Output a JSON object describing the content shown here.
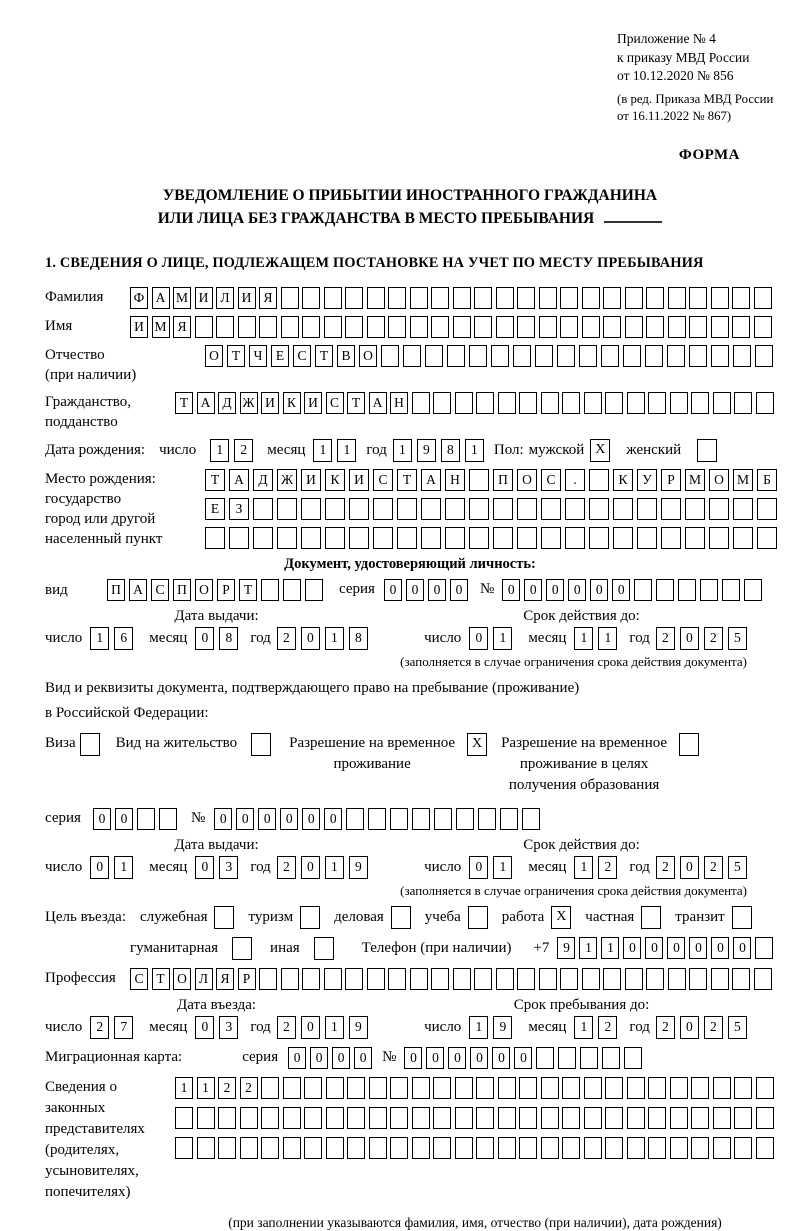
{
  "colors": {
    "ink": "#000000",
    "paper": "#ffffff"
  },
  "header": {
    "appendix_line1": "Приложение № 4",
    "appendix_line2": "к приказу МВД России",
    "appendix_line3": "от 10.12.2020 № 856",
    "edition_line1": "(в ред. Приказа МВД России",
    "edition_line2": "от 16.11.2022 № 867)",
    "form_label": "ФОРМА"
  },
  "title": {
    "line1": "УВЕДОМЛЕНИЕ О ПРИБЫТИИ ИНОСТРАННОГО ГРАЖДАНИНА",
    "line2": "ИЛИ ЛИЦА БЕЗ ГРАЖДАНСТВА В МЕСТО ПРЕБЫВАНИЯ"
  },
  "section1_heading": "1. СВЕДЕНИЯ О ЛИЦЕ, ПОДЛЕЖАЩЕМ ПОСТАНОВКЕ НА УЧЕТ ПО МЕСТУ ПРЕБЫВАНИЯ",
  "date_labels": {
    "day": "число",
    "month": "месяц",
    "year": "год"
  },
  "person": {
    "surname": {
      "label": "Фамилия",
      "cells": {
        "v": "ФАМИЛИЯ",
        "n": 30
      }
    },
    "firstname": {
      "label": "Имя",
      "cells": {
        "v": "ИМЯ",
        "n": 30
      }
    },
    "patronymic": {
      "label1": "Отчество",
      "label2": "(при наличии)",
      "cells": {
        "v": "ОТЧЕСТВО",
        "n": 26
      }
    },
    "citizenship": {
      "label1": "Гражданство,",
      "label2": "подданство",
      "cells": {
        "v": "ТАДЖИКИСТАН",
        "n": 28
      }
    },
    "birthdate": {
      "label": "Дата рождения:",
      "day": {
        "v": "12"
      },
      "month": {
        "v": "11"
      },
      "year": {
        "v": "1981"
      },
      "sex_label": "Пол:",
      "male_label": "мужской",
      "male_mark": "X",
      "female_label": "женский",
      "female_mark": ""
    },
    "birthplace": {
      "label1": "Место рождения:",
      "label2": "государство",
      "label3": "город или другой",
      "label4": "населенный пункт",
      "row1": {
        "v": "ТАДЖИКИСТАН ПОС. КУРМОМБ",
        "n": 24
      },
      "row2": {
        "v": "ЕЗ",
        "n": 24
      },
      "row3": {
        "v": "",
        "n": 24
      }
    }
  },
  "identity_doc": {
    "heading": "Документ, удостоверяющий личность:",
    "kind_label": "вид",
    "kind": {
      "v": "ПАСПОРТ",
      "n": 10
    },
    "series_label": "серия",
    "series": {
      "v": "0000",
      "n": 4
    },
    "number_label": "№",
    "number": {
      "v": "000000",
      "n": 12
    },
    "issue_label": "Дата выдачи:",
    "issue": {
      "day": {
        "v": "16"
      },
      "month": {
        "v": "08"
      },
      "year": {
        "v": "2018"
      }
    },
    "expiry_label": "Срок действия до:",
    "expiry": {
      "day": {
        "v": "01"
      },
      "month": {
        "v": "11"
      },
      "year": {
        "v": "2025"
      }
    },
    "footnote": "(заполняется в случае ограничения срока действия документа)"
  },
  "residence_doc": {
    "intro_line1": "Вид и реквизиты документа, подтверждающего право на пребывание (проживание)",
    "intro_line2": "в Российской Федерации:",
    "options": [
      {
        "label1": "Виза",
        "mark": ""
      },
      {
        "label1": "Вид на жительство",
        "mark": ""
      },
      {
        "label1": "Разрешение на временное",
        "label2": "проживание",
        "mark": "X"
      },
      {
        "label1": "Разрешение на временное",
        "label2": "проживание в целях",
        "label3": "получения образования",
        "mark": ""
      }
    ],
    "series_label": "серия",
    "series": {
      "v": "00",
      "n": 4
    },
    "number_label": "№",
    "number": {
      "v": "000000",
      "n": 15
    },
    "issue_label": "Дата выдачи:",
    "issue": {
      "day": {
        "v": "01"
      },
      "month": {
        "v": "03"
      },
      "year": {
        "v": "2019"
      }
    },
    "expiry_label": "Срок действия до:",
    "expiry": {
      "day": {
        "v": "01"
      },
      "month": {
        "v": "12"
      },
      "year": {
        "v": "2025"
      }
    },
    "footnote": "(заполняется в случае ограничения срока действия документа)"
  },
  "visit": {
    "purpose_label": "Цель въезда:",
    "purposes": [
      {
        "label": "служебная",
        "mark": ""
      },
      {
        "label": "туризм",
        "mark": ""
      },
      {
        "label": "деловая",
        "mark": ""
      },
      {
        "label": "учеба",
        "mark": ""
      },
      {
        "label": "работа",
        "mark": "X"
      },
      {
        "label": "частная",
        "mark": ""
      },
      {
        "label": "транзит",
        "mark": ""
      }
    ],
    "purposes2": [
      {
        "label": "гуманитарная",
        "mark": ""
      },
      {
        "label": "иная",
        "mark": ""
      }
    ],
    "phone_label": "Телефон (при наличии)",
    "phone_prefix": "+7",
    "phone": {
      "v": "911000000",
      "n": 10
    },
    "profession_label": "Профессия",
    "profession": {
      "v": "СТОЛЯР",
      "n": 30
    },
    "entry_label": "Дата въезда:",
    "entry": {
      "day": {
        "v": "27"
      },
      "month": {
        "v": "03"
      },
      "year": {
        "v": "2019"
      }
    },
    "stay_label": "Срок пребывания до:",
    "stay": {
      "day": {
        "v": "19"
      },
      "month": {
        "v": "12"
      },
      "year": {
        "v": "2025"
      }
    }
  },
  "migration_card": {
    "label": "Миграционная карта:",
    "series_label": "серия",
    "series": {
      "v": "0000",
      "n": 4
    },
    "number_label": "№",
    "number": {
      "v": "000000",
      "n": 11
    }
  },
  "representatives": {
    "label_line1": "Сведения о",
    "label_line2": "законных",
    "label_line3": "представителях",
    "label_line4": "(родителях,",
    "label_line5": "усыновителях,",
    "label_line6": "попечителях)",
    "row1": {
      "v": "1122",
      "n": 28
    },
    "row2": {
      "v": "",
      "n": 28
    },
    "row3": {
      "v": "",
      "n": 28
    },
    "footnote": "(при заполнении указываются фамилия, имя, отчество (при наличии), дата рождения)"
  }
}
